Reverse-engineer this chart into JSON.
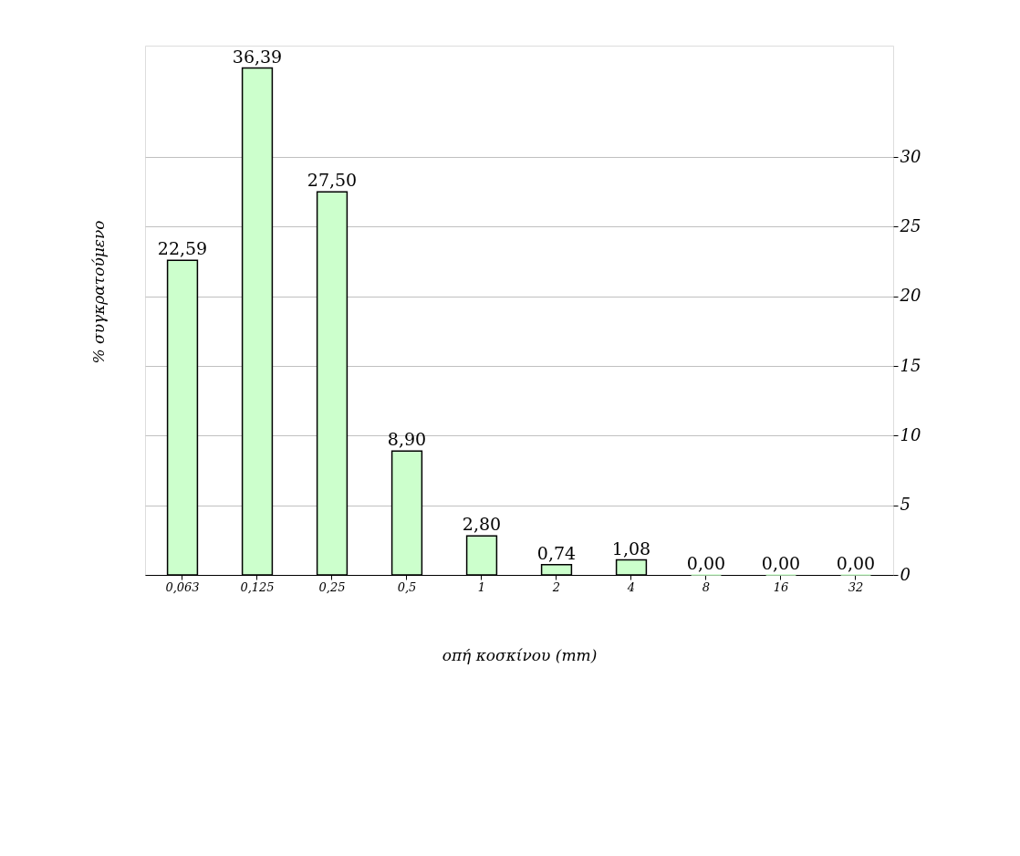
{
  "chart_data": {
    "type": "bar",
    "xlabel": "οπή κοσκίνου (mm)",
    "ylabel": "% συγκρατούμενο",
    "categories": [
      "0,063",
      "0,125",
      "0,25",
      "0,5",
      "1",
      "2",
      "4",
      "8",
      "16",
      "32"
    ],
    "values": [
      22.59,
      36.39,
      27.5,
      8.9,
      2.8,
      0.74,
      1.08,
      0.0,
      0.0,
      0.0
    ],
    "value_labels": [
      "22,59",
      "36,39",
      "27,50",
      "8,90",
      "2,80",
      "0,74",
      "1,08",
      "0,00",
      "0,00",
      "0,00"
    ],
    "color": "#ccffcc",
    "ylim": [
      0,
      38
    ],
    "yticks": [
      0,
      5,
      10,
      15,
      20,
      25,
      30
    ],
    "grid": "y"
  }
}
